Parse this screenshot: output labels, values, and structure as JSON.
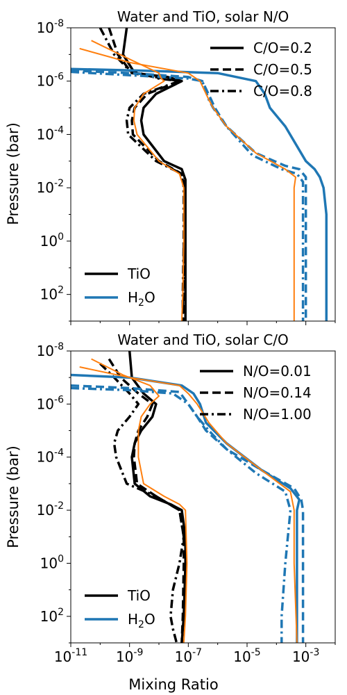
{
  "figure": {
    "xlabel": "Mixing Ratio",
    "ylabel": "Pressure (bar)"
  },
  "colors": {
    "water": "#1f77b4",
    "tio": "#000000",
    "orange": "#ff7f0e"
  },
  "chart_data": [
    {
      "type": "line",
      "title": "Water and TiO, solar N/O",
      "xscale": "log",
      "yscale": "log",
      "yaxis": "inverted",
      "xlim": [
        1e-11,
        0.01
      ],
      "ylim": [
        1e-08,
        1000.0
      ],
      "y_ticks": [
        "10^-8",
        "10^-6",
        "10^-4",
        "10^-2",
        "10^0",
        "10^2"
      ],
      "x_ticks_labeled": false,
      "legend_linestyles": {
        "position": "top-right",
        "entries": [
          "C/O=0.2",
          "C/O=0.5",
          "C/O=0.8"
        ]
      },
      "legend_species": {
        "position": "bottom-left",
        "entries": [
          "TiO",
          "H2O"
        ]
      },
      "series": [
        {
          "name": "TiO",
          "group": "C/O=0.2",
          "color": "tio",
          "dash": "solid",
          "x": [
            8e-10,
            6e-10,
            1.5e-09,
            2e-08,
            6e-08,
            8e-09,
            3e-09,
            2.5e-09,
            3e-09,
            1.5e-08,
            6e-08,
            8e-08,
            8e-08,
            8e-08,
            8e-08,
            8e-08,
            8e-08
          ],
          "y": [
            1e-08,
            1e-07,
            5e-07,
            7e-07,
            1e-06,
            3e-06,
            1e-05,
            3e-05,
            0.0001,
            0.001,
            0.002,
            0.005,
            0.01,
            1,
            10,
            100,
            1000
          ]
        },
        {
          "name": "TiO",
          "group": "C/O=0.5",
          "color": "tio",
          "dash": "dash",
          "x": [
            2e-10,
            4e-10,
            1.2e-09,
            1.5e-08,
            5e-08,
            4e-09,
            1.5e-09,
            1.2e-09,
            1.3e-09,
            1e-08,
            6e-08,
            7.5e-08,
            7.5e-08,
            7e-08,
            7e-08,
            7e-08
          ],
          "y": [
            1e-08,
            1e-07,
            5e-07,
            8e-07,
            1e-06,
            3e-06,
            1e-05,
            3e-05,
            0.0001,
            0.001,
            0.003,
            0.01,
            0.1,
            1,
            100,
            1000
          ]
        },
        {
          "name": "TiO",
          "group": "C/O=0.8",
          "color": "tio",
          "dash": "dashdot",
          "x": [
            1e-10,
            3e-10,
            1e-09,
            1e-08,
            5e-08,
            3e-09,
            1e-09,
            8e-10,
            9e-10,
            8e-09,
            6e-08,
            7e-08,
            7e-08,
            6.5e-08,
            6.5e-08
          ],
          "y": [
            1e-08,
            1e-07,
            4e-07,
            8e-07,
            1e-06,
            3e-06,
            1e-05,
            3e-05,
            0.0001,
            0.001,
            0.003,
            0.01,
            1,
            100,
            1000
          ]
        },
        {
          "name": "H2O",
          "group": "C/O=0.2",
          "color": "water",
          "dash": "solid",
          "x": [
            1e-11,
            2e-09,
            1e-06,
            2e-05,
            4e-05,
            6e-05,
            0.0002,
            0.001,
            0.002,
            0.003,
            0.004,
            0.005,
            0.005,
            0.005
          ],
          "y": [
            3.5e-07,
            4e-07,
            5e-07,
            1e-06,
            3e-06,
            1e-05,
            5e-05,
            0.001,
            0.002,
            0.004,
            0.01,
            0.1,
            10,
            1000
          ]
        },
        {
          "name": "H2O",
          "group": "C/O=0.5",
          "color": "water",
          "dash": "dash",
          "x": [
            1e-11,
            1e-09,
            1e-07,
            3e-07,
            6e-07,
            8e-07,
            2e-06,
            2e-05,
            0.0002,
            0.0006,
            0.001,
            0.001,
            0.001
          ],
          "y": [
            4e-07,
            5e-07,
            7e-07,
            1e-06,
            5e-06,
            1e-05,
            5e-05,
            0.0005,
            0.0015,
            0.002,
            0.004,
            1,
            1000
          ]
        },
        {
          "name": "H2O",
          "group": "C/O=0.8",
          "color": "water",
          "dash": "dashdot",
          "x": [
            1e-11,
            1e-09,
            1e-07,
            3e-07,
            5e-07,
            7e-07,
            2e-06,
            1.5e-05,
            0.00015,
            0.0005,
            0.0008,
            0.0008,
            0.0008
          ],
          "y": [
            4.5e-07,
            6e-07,
            8e-07,
            1e-06,
            5e-06,
            1e-05,
            5e-05,
            0.0006,
            0.002,
            0.003,
            0.006,
            1,
            1000
          ]
        },
        {
          "name": "",
          "group": "C/O=0.2",
          "color": "orange",
          "dash": "solid",
          "x": [
            5e-11,
            1e-09,
            1e-08,
            1.2e-08,
            1.5e-08,
            3e-09,
            1.5e-09,
            1.4e-09,
            1.8e-09,
            1e-08,
            5e-08,
            7e-08,
            7e-08,
            6.5e-08,
            6e-08
          ],
          "y": [
            3e-08,
            1.5e-07,
            5e-07,
            8e-07,
            1e-06,
            3e-06,
            1e-05,
            3e-05,
            0.0001,
            0.001,
            0.003,
            0.01,
            1,
            100,
            1000
          ]
        },
        {
          "name": "",
          "group": "C/O=0.2",
          "color": "orange",
          "dash": "solid",
          "x": [
            2e-11,
            1e-09,
            1e-07,
            2.5e-07,
            5e-07,
            7e-07,
            2e-06,
            2e-05,
            0.0002,
            0.00045,
            0.0004,
            0.0004,
            0.0004
          ],
          "y": [
            6e-08,
            2e-07,
            5e-07,
            1e-06,
            5e-06,
            1e-05,
            5e-05,
            0.0005,
            0.002,
            0.004,
            0.01,
            1,
            1000
          ]
        }
      ]
    },
    {
      "type": "line",
      "title": "Water and TiO, solar C/O",
      "xscale": "log",
      "yscale": "log",
      "yaxis": "inverted",
      "xlim": [
        1e-11,
        0.01
      ],
      "ylim": [
        1e-08,
        1000.0
      ],
      "x_ticks": [
        "10^-11",
        "10^-9",
        "10^-7",
        "10^-5",
        "10^-3"
      ],
      "y_ticks": [
        "10^-8",
        "10^-6",
        "10^-4",
        "10^-2",
        "10^0",
        "10^2"
      ],
      "legend_linestyles": {
        "position": "top-right",
        "entries": [
          "N/O=0.01",
          "N/O=0.14",
          "N/O=1.00"
        ]
      },
      "legend_species": {
        "position": "bottom-left",
        "entries": [
          "TiO",
          "H2O"
        ]
      },
      "series": [
        {
          "name": "TiO",
          "group": "N/O=0.01",
          "color": "tio",
          "dash": "solid",
          "x": [
            1e-09,
            1.2e-09,
            3e-09,
            8e-09,
            6e-09,
            2.5e-09,
            1.5e-09,
            1.2e-09,
            1.5e-09,
            5e-09,
            2.5e-08,
            6e-08,
            8e-08,
            8e-08,
            7e-08,
            6e-08
          ],
          "y": [
            1e-08,
            1e-07,
            4e-07,
            1e-06,
            3e-06,
            1e-05,
            3e-05,
            0.0001,
            0.001,
            0.003,
            0.006,
            0.01,
            0.1,
            1,
            100,
            1000
          ]
        },
        {
          "name": "TiO",
          "group": "N/O=0.14",
          "color": "tio",
          "dash": "dash",
          "x": [
            2e-10,
            5e-10,
            2e-09,
            6e-09,
            4e-09,
            2e-09,
            1.5e-09,
            1.4e-09,
            1.8e-09,
            8e-09,
            5e-08,
            7e-08,
            7e-08,
            6.5e-08,
            6e-08
          ],
          "y": [
            2e-08,
            1e-07,
            4e-07,
            1e-06,
            3e-06,
            1e-05,
            3e-05,
            0.0001,
            0.001,
            0.003,
            0.01,
            0.1,
            1,
            100,
            1000
          ]
        },
        {
          "name": "TiO",
          "group": "N/O=1.00",
          "color": "tio",
          "dash": "dashdot",
          "x": [
            1e-10,
            3e-10,
            1e-09,
            2e-09,
            1e-09,
            4e-10,
            3e-10,
            3.5e-10,
            8e-10,
            8e-09,
            5e-08,
            7e-08,
            5e-08,
            3e-08,
            2.5e-08,
            3e-08,
            4e-08
          ],
          "y": [
            3e-08,
            1e-07,
            4e-07,
            1e-06,
            3e-06,
            1e-05,
            3e-05,
            0.0001,
            0.001,
            0.003,
            0.01,
            0.1,
            1,
            10,
            100,
            300,
            1000
          ]
        },
        {
          "name": "H2O",
          "group": "N/O=0.01",
          "color": "water",
          "dash": "solid",
          "x": [
            1e-11,
            1e-09,
            6e-08,
            1.5e-07,
            2.5e-07,
            4e-07,
            2e-06,
            3e-05,
            0.0003,
            0.0006,
            0.0005,
            0.0005,
            0.0005
          ],
          "y": [
            8e-08,
            1e-07,
            2e-07,
            4e-07,
            1e-06,
            5e-06,
            3e-05,
            0.0003,
            0.0015,
            0.004,
            0.01,
            1,
            1000
          ]
        },
        {
          "name": "H2O",
          "group": "N/O=0.14",
          "color": "water",
          "dash": "dash",
          "x": [
            1e-11,
            1e-09,
            5e-08,
            1e-07,
            2e-07,
            4e-07,
            2e-06,
            3e-05,
            0.0004,
            0.0007,
            0.0008,
            0.0008,
            0.0008
          ],
          "y": [
            2e-07,
            2.5e-07,
            3.5e-07,
            1e-06,
            3e-06,
            1e-05,
            5e-05,
            0.0003,
            0.0015,
            0.004,
            0.01,
            1,
            1000
          ]
        },
        {
          "name": "H2O",
          "group": "N/O=1.00",
          "color": "water",
          "dash": "dashdot",
          "x": [
            1e-11,
            1e-09,
            3e-08,
            1e-07,
            2e-07,
            5e-07,
            2e-06,
            2e-05,
            0.0002,
            0.0003,
            0.0002,
            0.00015,
            0.00015
          ],
          "y": [
            2.5e-07,
            3e-07,
            4e-07,
            1e-06,
            3e-06,
            1e-05,
            5e-05,
            0.0004,
            0.002,
            0.01,
            1,
            100,
            1000
          ]
        },
        {
          "name": "",
          "group": "N/O=0.01",
          "color": "orange",
          "dash": "solid",
          "x": [
            5e-11,
            6e-10,
            5e-09,
            1e-08,
            5e-09,
            2.5e-09,
            2e-09,
            2e-09,
            3e-09,
            1.5e-08,
            5e-08,
            8e-08,
            9e-08,
            8e-08,
            7e-08
          ],
          "y": [
            2e-08,
            8e-08,
            2e-07,
            5e-07,
            1e-06,
            3e-06,
            1e-05,
            0.0001,
            0.001,
            0.003,
            0.006,
            0.01,
            1,
            100,
            1000
          ]
        },
        {
          "name": "",
          "group": "N/O=0.01",
          "color": "orange",
          "dash": "solid",
          "x": [
            2e-11,
            1e-09,
            5e-08,
            1e-07,
            2e-07,
            3e-07,
            5e-07,
            2e-06,
            3e-05,
            0.0003,
            0.0004,
            0.0004,
            0.0005
          ],
          "y": [
            4e-08,
            1e-07,
            2e-07,
            4e-07,
            1e-06,
            2e-06,
            5e-06,
            3e-05,
            0.0003,
            0.002,
            0.01,
            1,
            1000
          ]
        }
      ]
    }
  ]
}
